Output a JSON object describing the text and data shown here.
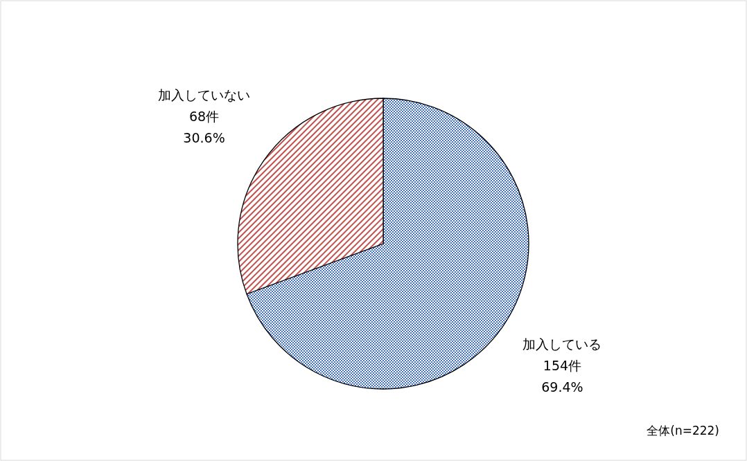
{
  "chart_data": {
    "type": "pie",
    "categories": [
      "加入している",
      "加入していない"
    ],
    "values": [
      154,
      68
    ],
    "value_labels": [
      "154件\n69.4%",
      "68件\n30.6%"
    ],
    "colors": [
      "#4472c4",
      "#c0504d"
    ],
    "annotations": [
      "全体(n=222)"
    ]
  }
}
